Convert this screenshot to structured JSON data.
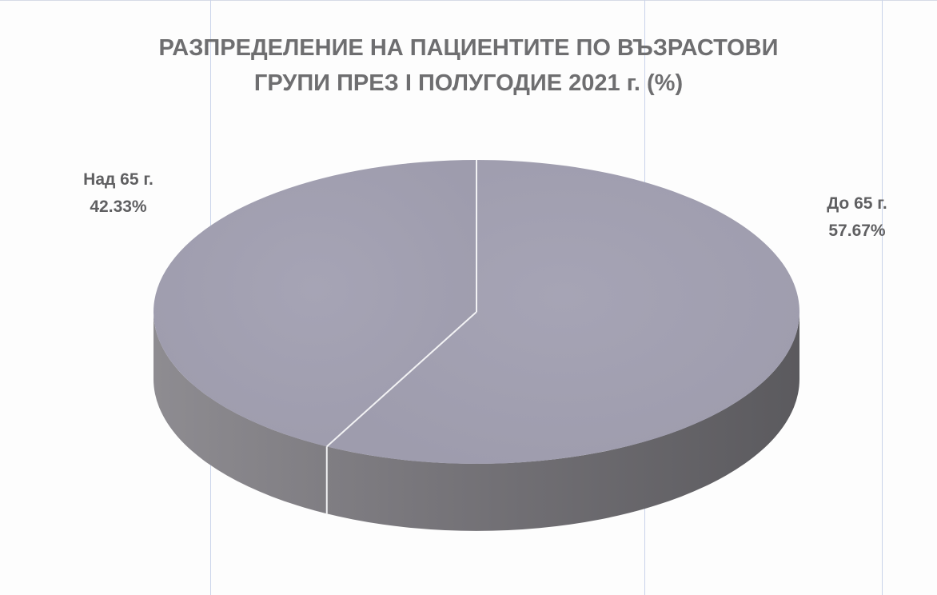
{
  "chart_data": {
    "type": "pie",
    "title_lines": [
      "РАЗПРЕДЕЛЕНИЕ НА ПАЦИЕНТИТЕ ПО ВЪЗРАСТОВИ",
      "ГРУПИ ПРЕЗ I ПОЛУГОДИЕ 2021 г. (%)"
    ],
    "slices": [
      {
        "label": "До 65 г.",
        "value": 57.67,
        "value_label": "57.67%"
      },
      {
        "label": "Над 65 г.",
        "value": 42.33,
        "value_label": "42.33%"
      }
    ],
    "colors": {
      "top": "#a4a2b3",
      "side_light": "#8e8c91",
      "side_dark": "#5b5a5e",
      "separator": "#f2f2f4",
      "label": "#5f5f61"
    }
  }
}
